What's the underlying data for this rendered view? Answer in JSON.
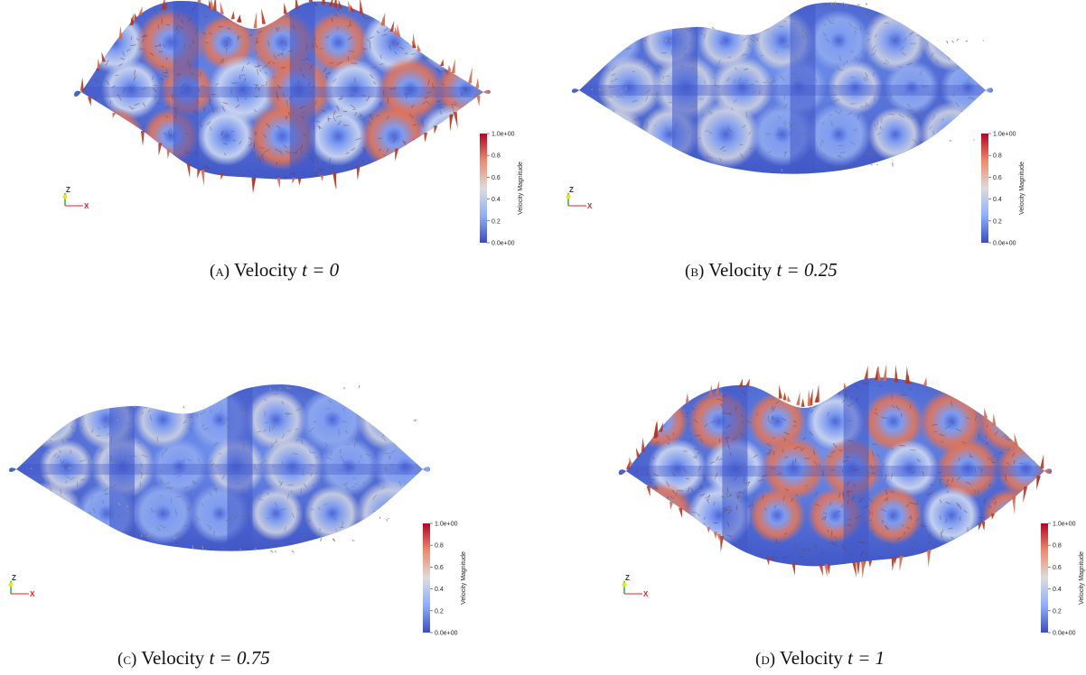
{
  "colorbar": {
    "title": "Velocity Magnitude",
    "ticks": [
      "1.0e+00",
      "0.8",
      "0.6",
      "0.4",
      "0.2",
      "0.0e+00"
    ],
    "colors": [
      "#b40426",
      "#f08a6c",
      "#dddcdc",
      "#8db0fe",
      "#3b4cc0"
    ]
  },
  "axes_triad": {
    "up": "Z",
    "right": "X",
    "up_color": "#22bb22",
    "right_color": "#dd2222"
  },
  "panels": [
    {
      "label": "(a)",
      "caption": "Velocity",
      "math": "t = 0",
      "magnitude_level": 1.0
    },
    {
      "label": "(b)",
      "caption": "Velocity",
      "math": "t = 0.25",
      "magnitude_level": 0.35
    },
    {
      "label": "(c)",
      "caption": "Velocity",
      "math": "t = 0.75",
      "magnitude_level": 0.35
    },
    {
      "label": "(d)",
      "caption": "Velocity",
      "math": "t = 1",
      "magnitude_level": 1.0
    }
  ]
}
